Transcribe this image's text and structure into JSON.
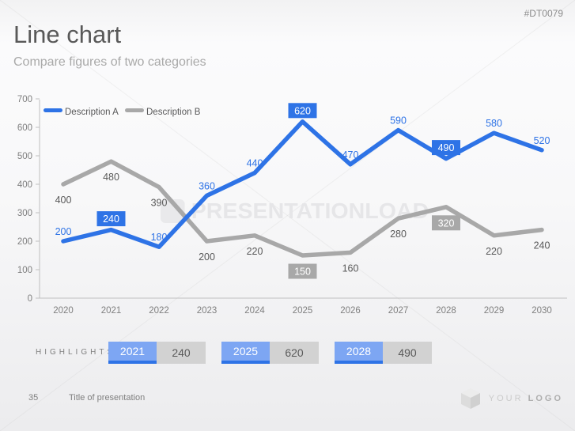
{
  "slide": {
    "tag": "#DT0079",
    "title": "Line chart",
    "subtitle": "Compare figures of two categories",
    "watermark": "PRESENTATIONLOAD",
    "page_number": "35",
    "footer_title": "Title of presentation",
    "logo_word_1": "YOUR",
    "logo_word_2": "LOGO"
  },
  "chart_data": {
    "type": "line",
    "x": [
      "2020",
      "2021",
      "2022",
      "2023",
      "2024",
      "2025",
      "2026",
      "2027",
      "2028",
      "2029",
      "2030"
    ],
    "series": [
      {
        "name": "Description A",
        "color": "#2e73e6",
        "values": [
          200,
          240,
          180,
          360,
          440,
          620,
          470,
          590,
          490,
          580,
          520
        ],
        "label_side": "above",
        "boxed_indices": [
          1,
          5,
          8
        ],
        "box_fill": "#2e73e6",
        "box_text_color": "#ffffff",
        "label_color": "#2e73e6"
      },
      {
        "name": "Description B",
        "color": "#a8a8a8",
        "values": [
          400,
          480,
          390,
          200,
          220,
          150,
          160,
          280,
          320,
          220,
          240
        ],
        "label_side": "below",
        "boxed_indices": [
          5,
          8
        ],
        "box_fill": "#a8a8a8",
        "box_text_color": "#ffffff",
        "label_color": "#595959"
      }
    ],
    "ylim": [
      0,
      700
    ],
    "ytick_step": 100,
    "grid": false,
    "legend_position": "top-left",
    "axis_color": "#bfbfbf",
    "tick_label_color": "#7f7f7f",
    "legend_text_color": "#595959"
  },
  "highlights": {
    "label": "HIGHLIGHTS",
    "items": [
      {
        "year": "2021",
        "value": "240"
      },
      {
        "year": "2025",
        "value": "620"
      },
      {
        "year": "2028",
        "value": "490"
      }
    ]
  },
  "colors": {
    "accent_blue": "#2e73e6",
    "light_blue": "#7da6f3",
    "series_gray": "#a8a8a8",
    "highlight_value_bg": "#d2d2d2",
    "text_dark": "#595959",
    "text_muted": "#7f7f7f"
  }
}
